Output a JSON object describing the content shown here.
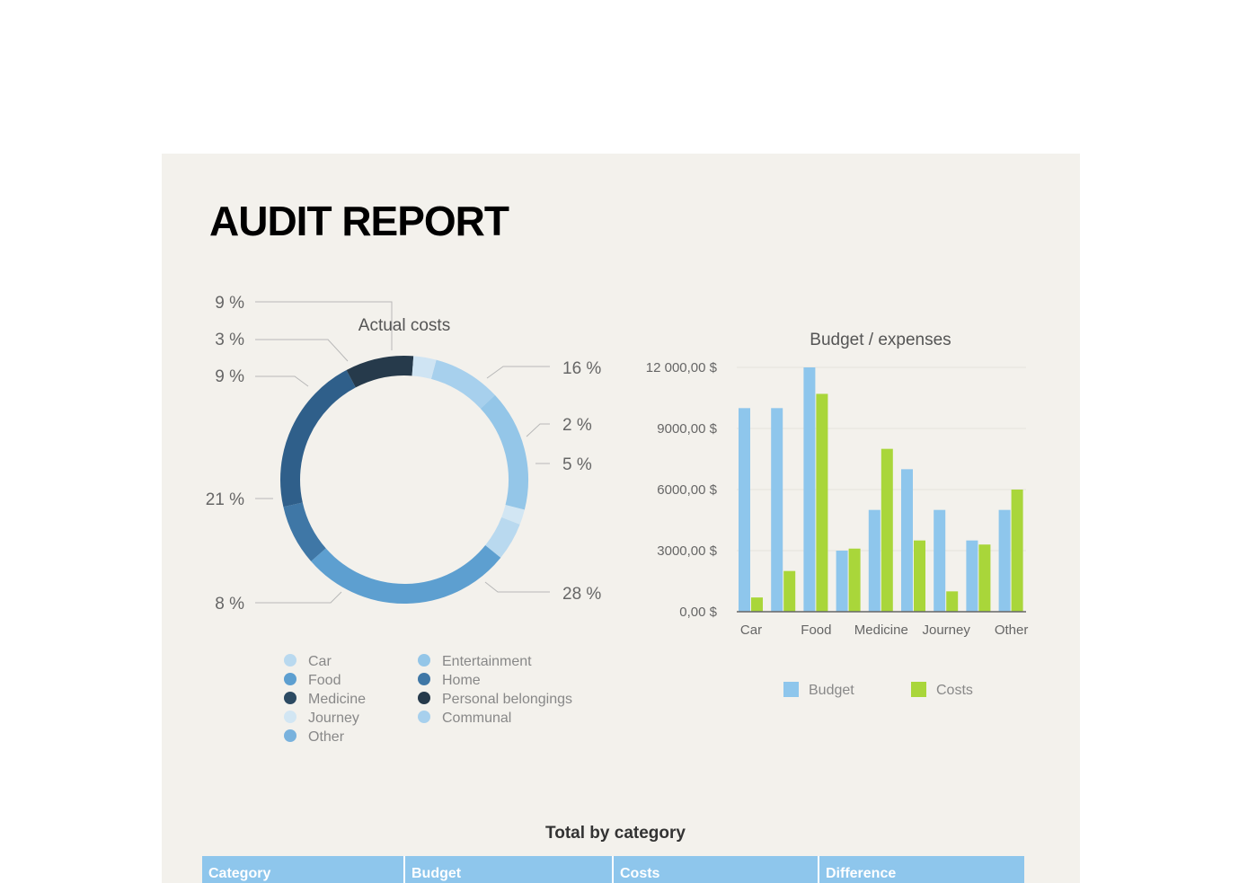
{
  "report": {
    "title": "AUDIT REPORT"
  },
  "donut": {
    "title": "Actual costs",
    "labels": [
      {
        "text": "9 %"
      },
      {
        "text": "3 %"
      },
      {
        "text": "9 %"
      },
      {
        "text": "21 %"
      },
      {
        "text": "8 %"
      },
      {
        "text": "16 %"
      },
      {
        "text": "2 %"
      },
      {
        "text": "5 %"
      },
      {
        "text": "28 %"
      }
    ]
  },
  "legend_left": [
    {
      "label": "Car",
      "color": "#b9d9ef"
    },
    {
      "label": "Food",
      "color": "#5d9fd0"
    },
    {
      "label": "Medicine",
      "color": "#2c4a62"
    },
    {
      "label": "Journey",
      "color": "#d2e6f3"
    },
    {
      "label": "Other",
      "color": "#79b2dd"
    },
    {
      "label": "Entertainment",
      "color": "#94c6e8"
    },
    {
      "label": "Home",
      "color": "#3f77a6"
    },
    {
      "label": "Personal belongings",
      "color": "#263a4b"
    },
    {
      "label": "Communal",
      "color": "#a7d0ed"
    }
  ],
  "chart_data": [
    {
      "type": "pie",
      "title": "Actual costs",
      "labels": [
        "9 %",
        "16 %",
        "2 %",
        "5 %",
        "28 %",
        "8 %",
        "21 %",
        "9 %",
        "3 %"
      ],
      "values": [
        9,
        16,
        2,
        5,
        28,
        8,
        21,
        9,
        3
      ],
      "colors": [
        "#a7d0ed",
        "#94c6e8",
        "#d2e6f3",
        "#b9d9ef",
        "#5d9fd0",
        "#3f77a6",
        "#2f5f8a",
        "#263a4b",
        "#cfe4f3"
      ]
    },
    {
      "type": "bar",
      "title": "Budget / expenses",
      "categories": [
        "Car",
        "",
        "Food",
        "",
        "Medicine",
        "",
        "Journey",
        "",
        "Other"
      ],
      "series": [
        {
          "name": "Budget",
          "color": "#8ec6ec",
          "values": [
            10000,
            10000,
            12000,
            3000,
            5000,
            7000,
            5000,
            3500,
            5000
          ]
        },
        {
          "name": "Costs",
          "color": "#a9d63a",
          "values": [
            700,
            2000,
            10700,
            3100,
            8000,
            3500,
            1000,
            3300,
            6000
          ]
        }
      ],
      "yticks": [
        "0,00 $",
        "3000,00 $",
        "6000,00 $",
        "9000,00 $",
        "12 000,00 $"
      ],
      "ylim": [
        0,
        12000
      ]
    }
  ],
  "table": {
    "title": "Total by category",
    "headers": [
      "Category",
      "Budget",
      "Costs",
      "Difference"
    ],
    "header_color": "#8ec6ec"
  }
}
